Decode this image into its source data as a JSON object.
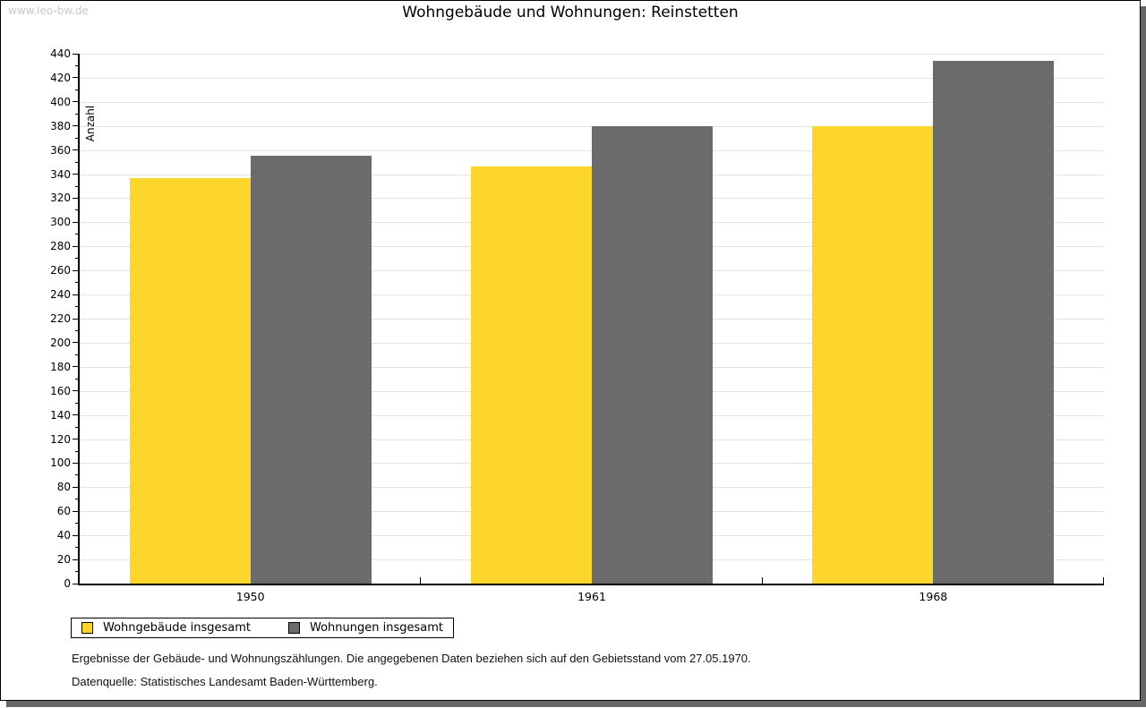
{
  "page": {
    "watermark": "www.leo-bw.de",
    "title": "Wohngebäude und Wohnungen: Reinstetten",
    "footnote": "Ergebnisse der Gebäude- und Wohnungszählungen. Die angegebenen Daten beziehen sich auf den Gebietsstand vom 27.05.1970.",
    "source": "Datenquelle: Statistisches Landesamt Baden-Württemberg."
  },
  "chart_data": {
    "type": "bar",
    "title": "Wohngebäude und Wohnungen: Reinstetten",
    "categories": [
      "1950",
      "1961",
      "1968"
    ],
    "series": [
      {
        "name": "Wohngebäude insgesamt",
        "color": "#fdd62d",
        "values": [
          337,
          346,
          380
        ]
      },
      {
        "name": "Wohnungen insgesamt",
        "color": "#6b6b6b",
        "values": [
          355,
          380,
          434
        ]
      }
    ],
    "xlabel": "",
    "ylabel": "Anzahl",
    "ylim": [
      0,
      440
    ],
    "ytick_step": 20,
    "minor_tick_step": 10,
    "grid": true,
    "gridline_color": "#e2e2e2",
    "legend_position": "bottom-left"
  }
}
